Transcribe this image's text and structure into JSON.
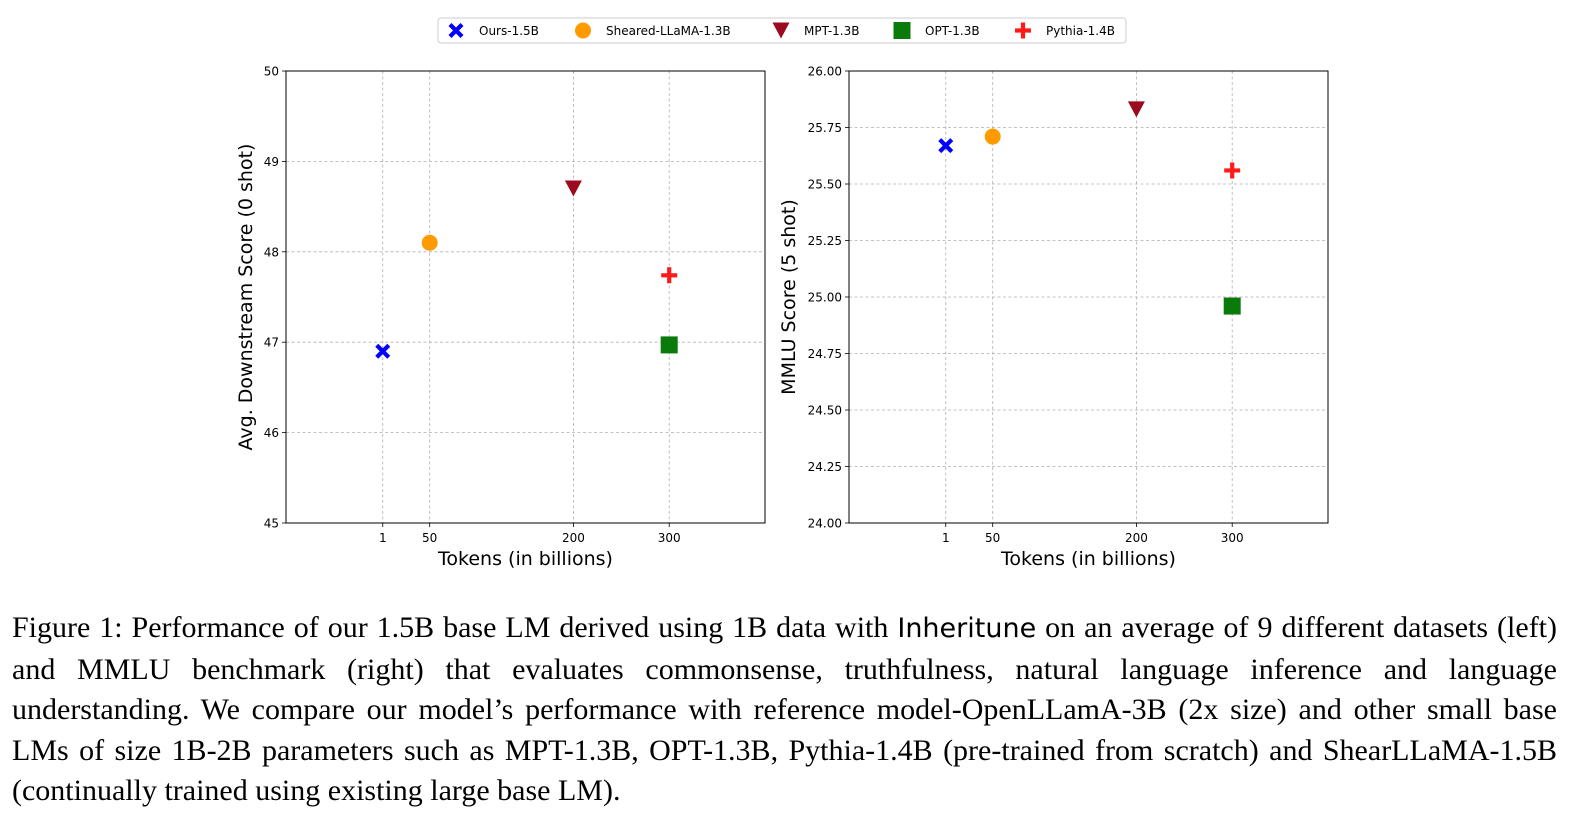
{
  "legend": [
    {
      "name": "Ours-1.5B",
      "marker": "x",
      "color": "#0000ff"
    },
    {
      "name": "Sheared-LLaMA-1.3B",
      "marker": "circle",
      "color": "#ff9a00"
    },
    {
      "name": "MPT-1.3B",
      "marker": "triangle-down",
      "color": "#9b0a1e"
    },
    {
      "name": "OPT-1.3B",
      "marker": "square",
      "color": "#0a7a0a"
    },
    {
      "name": "Pythia-1.4B",
      "marker": "plus",
      "color": "#ff1a1a"
    }
  ],
  "chart_data": [
    {
      "type": "scatter",
      "xlabel": "Tokens (in billions)",
      "ylabel": "Avg. Downstream Score (0 shot)",
      "xticks": [
        1,
        50,
        200,
        300
      ],
      "xlim": [
        -100,
        400
      ],
      "yticks": [
        "45",
        "46",
        "47",
        "48",
        "49",
        "50"
      ],
      "ylim": [
        45,
        50
      ],
      "grid": true,
      "series": [
        {
          "name": "Ours-1.5B",
          "x": 1,
          "y": 46.9
        },
        {
          "name": "Sheared-LLaMA-1.3B",
          "x": 50,
          "y": 48.1
        },
        {
          "name": "MPT-1.3B",
          "x": 200,
          "y": 48.7
        },
        {
          "name": "OPT-1.3B",
          "x": 300,
          "y": 46.97
        },
        {
          "name": "Pythia-1.4B",
          "x": 300,
          "y": 47.74
        }
      ]
    },
    {
      "type": "scatter",
      "xlabel": "Tokens (in billions)",
      "ylabel": "MMLU Score (5 shot)",
      "xticks": [
        1,
        50,
        200,
        300
      ],
      "xlim": [
        -100,
        400
      ],
      "yticks": [
        "24.00",
        "24.25",
        "24.50",
        "24.75",
        "25.00",
        "25.25",
        "25.50",
        "25.75",
        "26.00"
      ],
      "ylim": [
        24.0,
        26.0
      ],
      "grid": true,
      "series": [
        {
          "name": "Ours-1.5B",
          "x": 1,
          "y": 25.67
        },
        {
          "name": "Sheared-LLaMA-1.3B",
          "x": 50,
          "y": 25.71
        },
        {
          "name": "MPT-1.3B",
          "x": 200,
          "y": 25.83
        },
        {
          "name": "OPT-1.3B",
          "x": 300,
          "y": 24.96
        },
        {
          "name": "Pythia-1.4B",
          "x": 300,
          "y": 25.56
        }
      ]
    }
  ],
  "caption": {
    "prefix": "Figure 1: Performance of our 1.5B base LM derived using 1B data with ",
    "method": "Inheritune",
    "suffix": " on an average of 9 different datasets (left) and MMLU benchmark (right) that evaluates commonsense, truthfulness, natural language inference and language understanding. We compare our model’s performance with reference model-OpenLLamA-3B (2x size) and other small base LMs of size 1B-2B parameters such as MPT-1.3B, OPT-1.3B, Pythia-1.4B (pre-trained from scratch) and ShearLLaMA-1.5B (continually trained using existing large base LM)."
  }
}
